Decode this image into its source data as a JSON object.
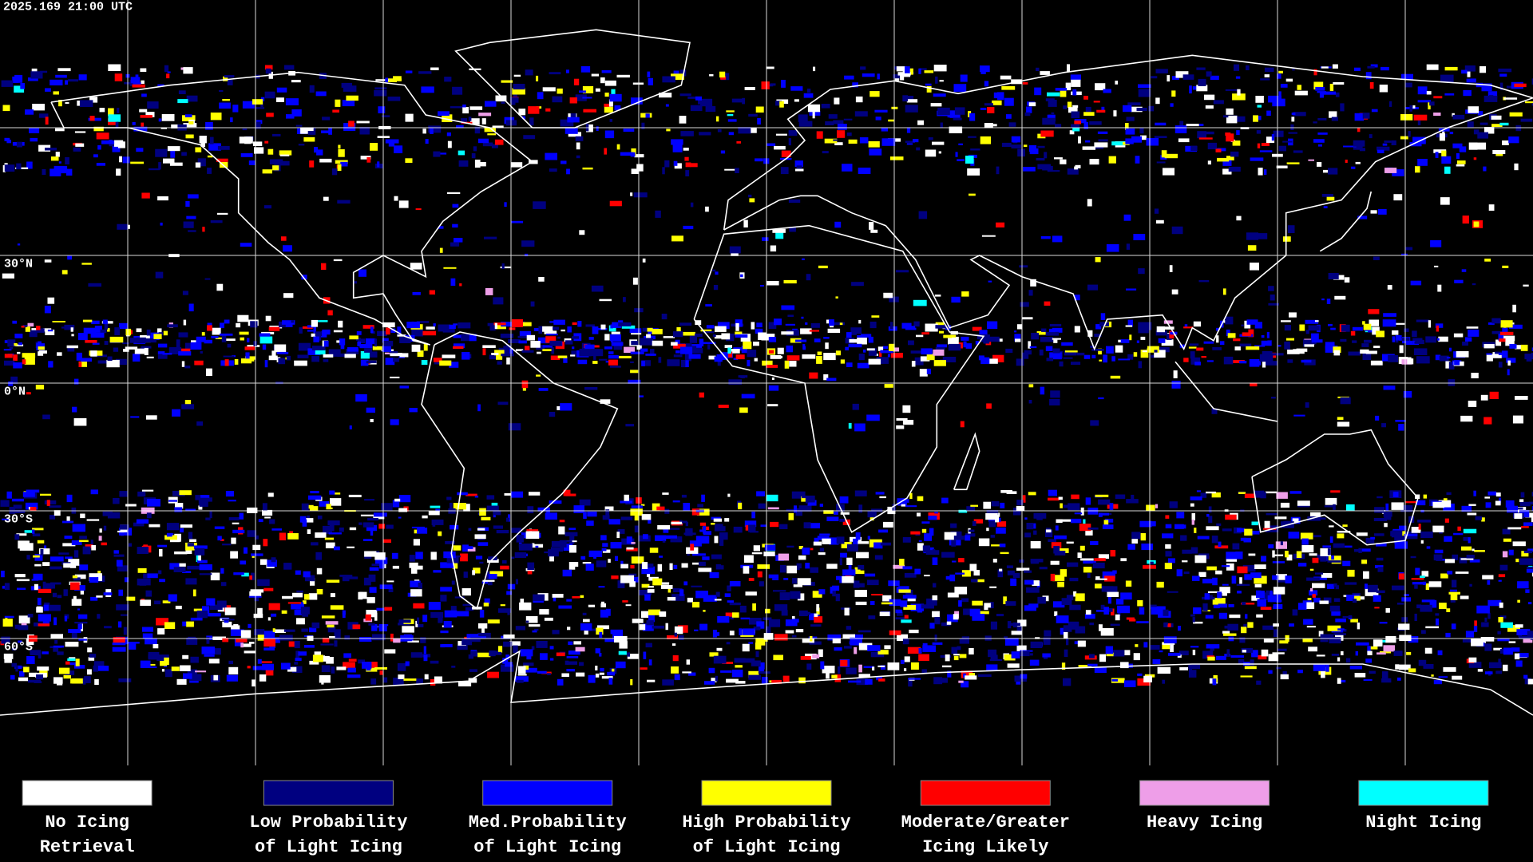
{
  "header": {
    "timestamp": "2025.169 21:00 UTC"
  },
  "map": {
    "latitude_labels": [
      "30°N",
      "0°N",
      "30°S",
      "60°S"
    ]
  },
  "legend": [
    {
      "lines": [
        "No Icing",
        "Retrieval"
      ],
      "color": "#ffffff"
    },
    {
      "lines": [
        "Low Probability",
        "of Light Icing"
      ],
      "color": "#000080"
    },
    {
      "lines": [
        "Med.Probability",
        "of Light Icing"
      ],
      "color": "#0000ff"
    },
    {
      "lines": [
        "High Probability",
        "of Light Icing"
      ],
      "color": "#ffff00"
    },
    {
      "lines": [
        "Moderate/Greater",
        "Icing Likely"
      ],
      "color": "#ff0000"
    },
    {
      "lines": [
        "Heavy Icing"
      ],
      "color": "#ee9ee8"
    },
    {
      "lines": [
        "Night Icing"
      ],
      "color": "#00ffff"
    }
  ]
}
